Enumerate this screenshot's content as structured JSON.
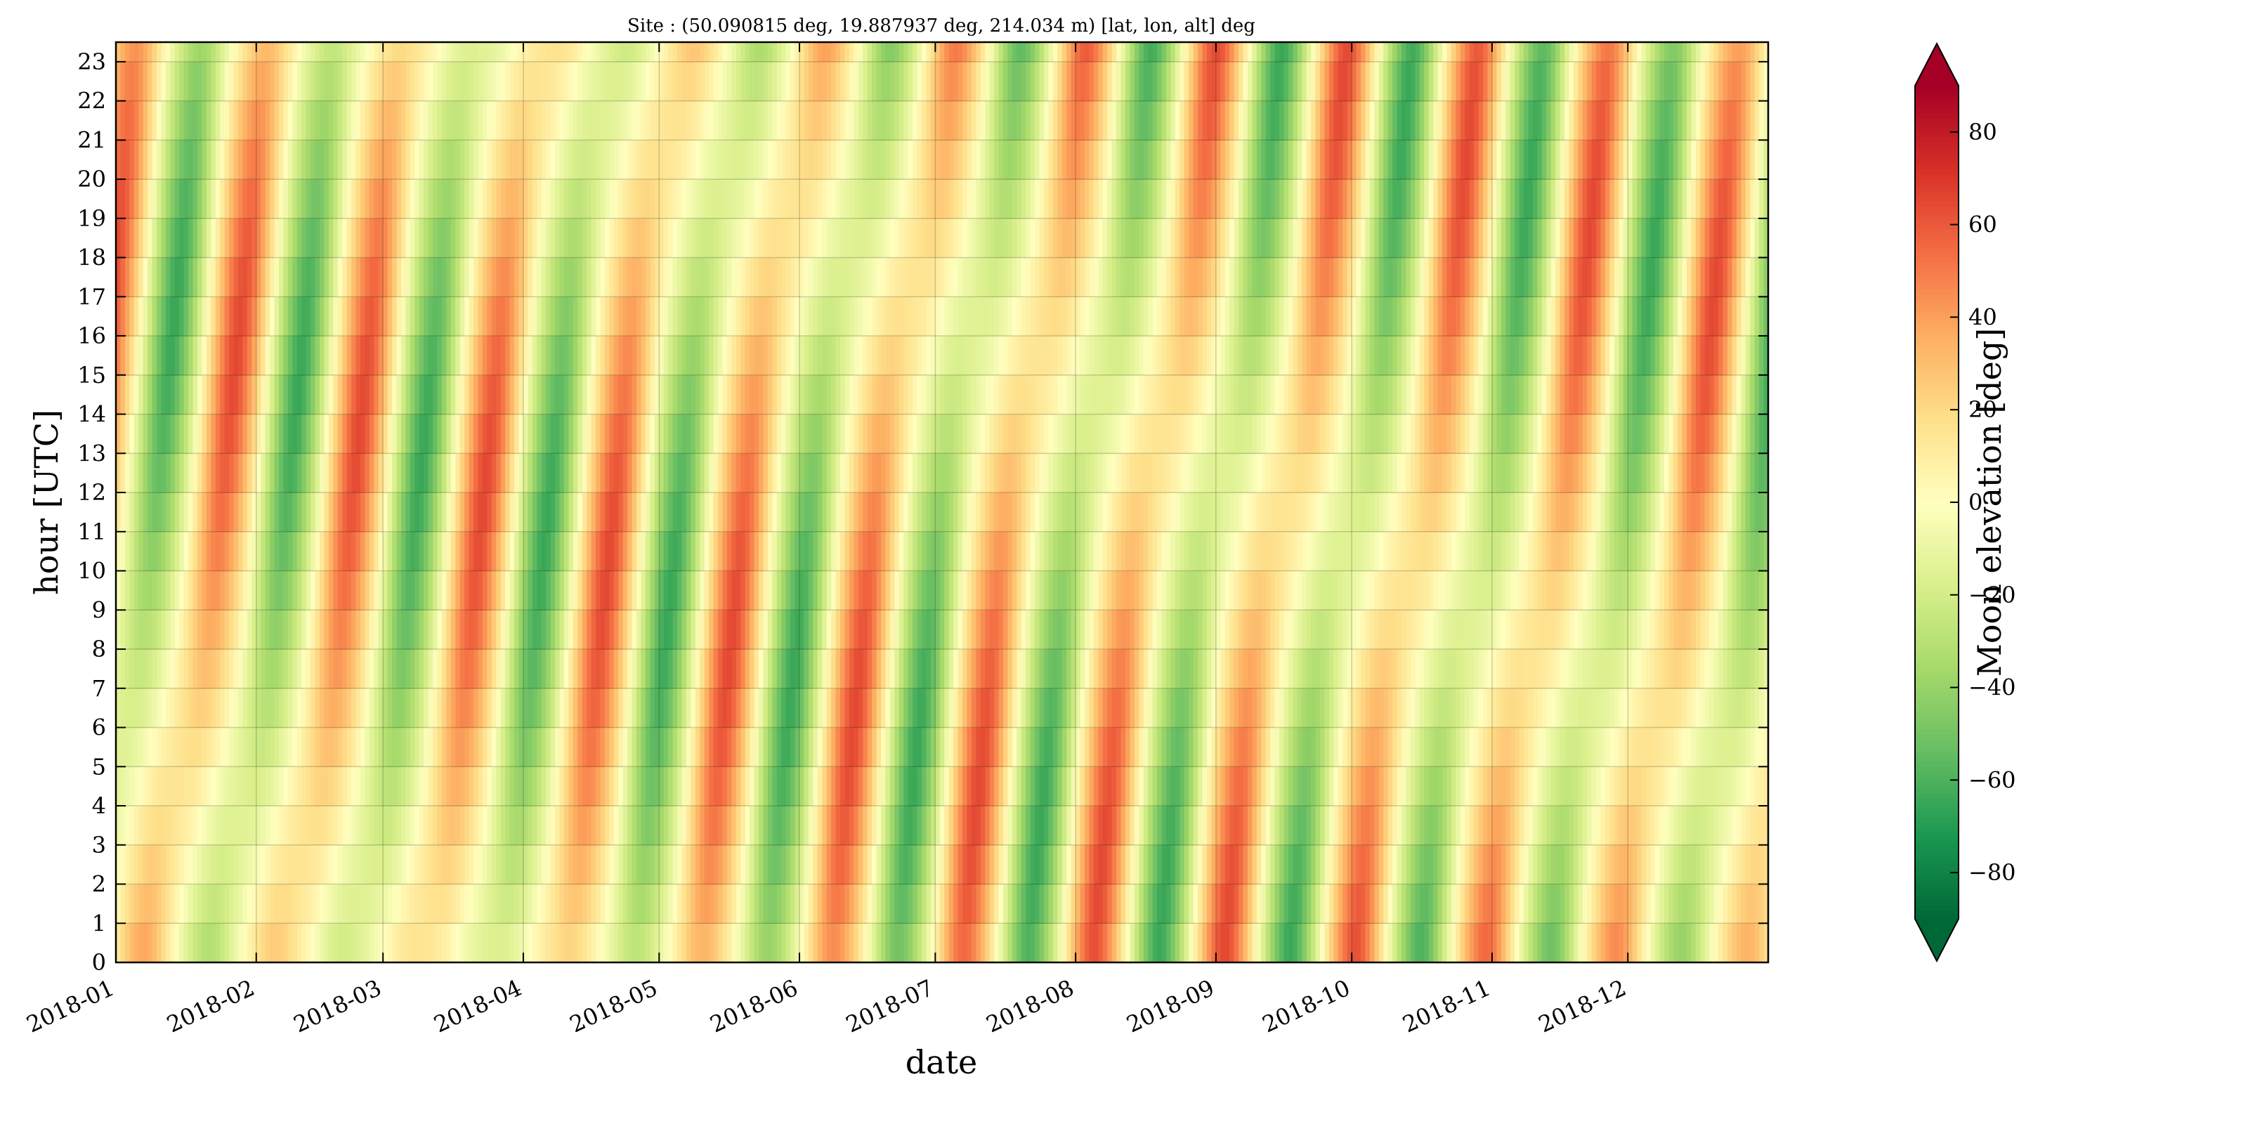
{
  "chart_data": {
    "type": "heatmap",
    "title": "Site : (50.090815 deg, 19.887937 deg, 214.034 m) [lat, lon, alt] deg",
    "xlabel": "date",
    "ylabel": "hour [UTC]",
    "x_range": [
      "2018-01-01",
      "2018-12-31"
    ],
    "x_ticks": [
      "2018-01",
      "2018-02",
      "2018-03",
      "2018-04",
      "2018-05",
      "2018-06",
      "2018-07",
      "2018-08",
      "2018-09",
      "2018-10",
      "2018-11",
      "2018-12"
    ],
    "y_range": [
      0,
      23.5
    ],
    "y_ticks": [
      "0",
      "1",
      "2",
      "3",
      "4",
      "5",
      "6",
      "7",
      "8",
      "9",
      "10",
      "11",
      "12",
      "13",
      "14",
      "15",
      "16",
      "17",
      "18",
      "19",
      "20",
      "21",
      "22",
      "23"
    ],
    "grid": true,
    "value_label": "Moon elevation [deg]",
    "value_range": [
      -90,
      90
    ],
    "colorbar_ticks": [
      "80",
      "60",
      "40",
      "20",
      "0",
      "−20",
      "−40",
      "−60",
      "−80"
    ],
    "colorbar_extend": "both",
    "colormap": "RdYlGn_r",
    "colormap_colors": [
      "#006837",
      "#1a9850",
      "#66bd63",
      "#a6d96a",
      "#d9ef8b",
      "#ffffbf",
      "#fee08b",
      "#fdae61",
      "#f46d43",
      "#d73027",
      "#a50026"
    ],
    "moon_model": {
      "site_latitude_deg": 50.090815,
      "site_longitude_deg": 19.887937,
      "max_elevation_deg": 75,
      "min_elevation_deg": -75
    }
  }
}
